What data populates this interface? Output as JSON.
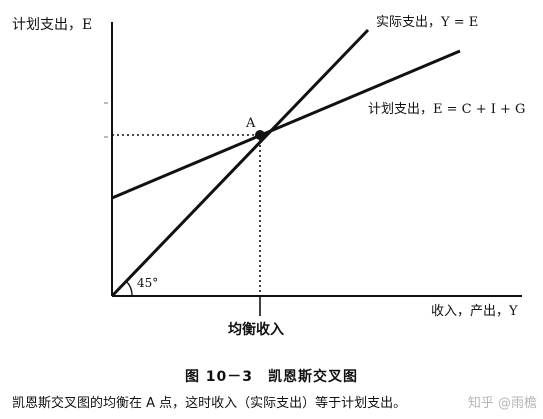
{
  "diagram": {
    "y_axis_label": "计划支出，E",
    "x_axis_label": "收入，产出，Y",
    "actual_line_label": "实际支出，Y = E",
    "planned_line_label": "计划支出，E = C + I + G",
    "point_label": "A",
    "angle_label": "45°",
    "equilibrium_label": "均衡收入"
  },
  "caption": {
    "title": "图 10－3　凯恩斯交叉图",
    "text": "凯恩斯交叉图的均衡在 A 点，这时收入（实际支出）等于计划支出。"
  },
  "watermark": {
    "text": "知乎 @雨檐"
  }
}
